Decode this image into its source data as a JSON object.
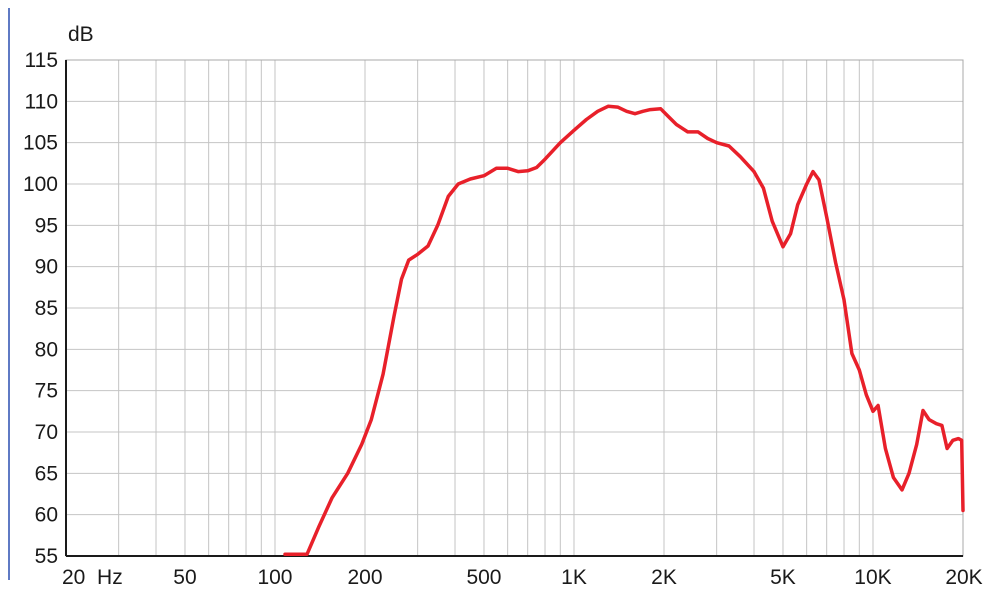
{
  "chart_data": {
    "type": "line",
    "title": "",
    "xlabel": "",
    "ylabel": "dB",
    "xscale": "log",
    "xlim": [
      20,
      20000
    ],
    "ylim": [
      55,
      115
    ],
    "grid": true,
    "legend": "none",
    "x_ticks": [
      {
        "value": 20,
        "label": "20  Hz"
      },
      {
        "value": 50,
        "label": "50"
      },
      {
        "value": 100,
        "label": "100"
      },
      {
        "value": 200,
        "label": "200"
      },
      {
        "value": 500,
        "label": "500"
      },
      {
        "value": 1000,
        "label": "1K"
      },
      {
        "value": 2000,
        "label": "2K"
      },
      {
        "value": 5000,
        "label": "5K"
      },
      {
        "value": 10000,
        "label": "10K"
      },
      {
        "value": 20000,
        "label": "20K"
      }
    ],
    "y_ticks": [
      55,
      60,
      65,
      70,
      75,
      80,
      85,
      90,
      95,
      100,
      105,
      110,
      115
    ],
    "series": [
      {
        "color": "#e8202a",
        "points": [
          [
            108,
            55.2
          ],
          [
            128,
            55.2
          ],
          [
            140,
            58.5
          ],
          [
            155,
            62
          ],
          [
            175,
            65
          ],
          [
            195,
            68.5
          ],
          [
            210,
            71.5
          ],
          [
            230,
            77
          ],
          [
            250,
            84
          ],
          [
            265,
            88.5
          ],
          [
            280,
            90.8
          ],
          [
            300,
            91.5
          ],
          [
            325,
            92.5
          ],
          [
            350,
            95
          ],
          [
            380,
            98.5
          ],
          [
            410,
            100
          ],
          [
            450,
            100.6
          ],
          [
            500,
            101
          ],
          [
            550,
            101.9
          ],
          [
            600,
            101.9
          ],
          [
            650,
            101.5
          ],
          [
            700,
            101.6
          ],
          [
            750,
            102
          ],
          [
            800,
            103
          ],
          [
            900,
            105
          ],
          [
            1000,
            106.5
          ],
          [
            1100,
            107.8
          ],
          [
            1200,
            108.8
          ],
          [
            1300,
            109.4
          ],
          [
            1400,
            109.3
          ],
          [
            1500,
            108.8
          ],
          [
            1600,
            108.5
          ],
          [
            1700,
            108.8
          ],
          [
            1800,
            109
          ],
          [
            1950,
            109.1
          ],
          [
            2050,
            108.3
          ],
          [
            2200,
            107.2
          ],
          [
            2400,
            106.3
          ],
          [
            2600,
            106.3
          ],
          [
            2800,
            105.5
          ],
          [
            3000,
            105
          ],
          [
            3300,
            104.6
          ],
          [
            3600,
            103.3
          ],
          [
            4000,
            101.5
          ],
          [
            4300,
            99.5
          ],
          [
            4600,
            95.5
          ],
          [
            5000,
            92.4
          ],
          [
            5300,
            94
          ],
          [
            5600,
            97.5
          ],
          [
            6000,
            100
          ],
          [
            6300,
            101.5
          ],
          [
            6600,
            100.5
          ],
          [
            7000,
            96
          ],
          [
            7500,
            90.5
          ],
          [
            8000,
            86
          ],
          [
            8500,
            79.5
          ],
          [
            9000,
            77.5
          ],
          [
            9500,
            74.5
          ],
          [
            10000,
            72.5
          ],
          [
            10400,
            73.2
          ],
          [
            11000,
            68
          ],
          [
            11700,
            64.5
          ],
          [
            12500,
            63
          ],
          [
            13200,
            65
          ],
          [
            14000,
            68.5
          ],
          [
            14700,
            72.6
          ],
          [
            15400,
            71.5
          ],
          [
            16300,
            71
          ],
          [
            17000,
            70.8
          ],
          [
            17700,
            68
          ],
          [
            18500,
            69
          ],
          [
            19300,
            69.2
          ],
          [
            19800,
            69
          ],
          [
            20000,
            60.5
          ]
        ]
      }
    ]
  }
}
